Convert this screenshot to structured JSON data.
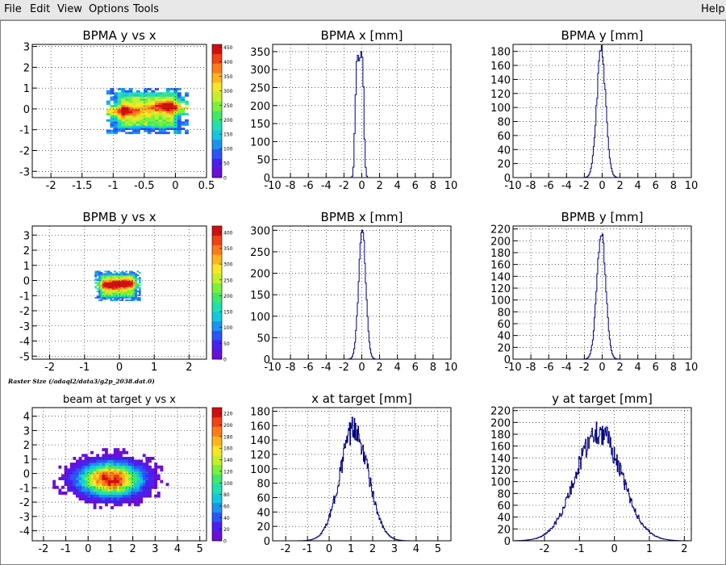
{
  "menu": {
    "file": "File",
    "edit": "Edit",
    "view": "View",
    "options": "Options",
    "tools": "Tools",
    "help": "Help"
  },
  "caption": "Raster Size (/adaql2/data3/g2p_2038.dat.0)",
  "colors": {
    "hist_line": "#000080",
    "grid": "#000000"
  },
  "palette": [
    "#6a0fd8",
    "#4b1ff0",
    "#2b55f7",
    "#1a94f0",
    "#12c8e0",
    "#1fe0b0",
    "#3fe86a",
    "#7cf03a",
    "#c4f02a",
    "#f8e624",
    "#ffb41e",
    "#ff7a18",
    "#f04214",
    "#d01010"
  ],
  "panels": [
    {
      "kind": "2d",
      "title": "BPMA y vs x",
      "xlim": [
        -2.3,
        0.5
      ],
      "ylim": [
        -3.3,
        3.1
      ],
      "xticks": [
        -2,
        -1.5,
        -1,
        -0.5,
        0,
        0.5
      ],
      "yticks": [
        -3,
        -2,
        -1,
        0,
        1,
        2,
        3
      ],
      "zmax": 460,
      "zticks": [
        0,
        50,
        100,
        150,
        200,
        250,
        300,
        350,
        400,
        450
      ],
      "blob": {
        "shape": "rect",
        "cx": -0.45,
        "cy": -0.1,
        "rx": 0.6,
        "ry": 1.0,
        "hot": [
          [
            -0.9,
            -0.1
          ],
          [
            -0.05,
            0.1
          ]
        ],
        "nx": 22,
        "ny": 22
      }
    },
    {
      "kind": "hist",
      "title": "BPMA x [mm]",
      "xlim": [
        -10,
        10
      ],
      "ylim": [
        0,
        370
      ],
      "xticks": [
        -10,
        -8,
        -6,
        -4,
        -2,
        0,
        2,
        4,
        6,
        8,
        10
      ],
      "yticks": [
        0,
        50,
        100,
        150,
        200,
        250,
        300,
        350
      ],
      "shape": {
        "type": "double",
        "m1": -0.55,
        "m2": 0.05,
        "s": 0.25,
        "amp": 340,
        "noise": 0.08,
        "bins": 160
      }
    },
    {
      "kind": "hist",
      "title": "BPMA y [mm]",
      "xlim": [
        -10,
        10
      ],
      "ylim": [
        0,
        190
      ],
      "xticks": [
        -10,
        -8,
        -6,
        -4,
        -2,
        0,
        2,
        4,
        6,
        8,
        10
      ],
      "yticks": [
        0,
        20,
        40,
        60,
        80,
        100,
        120,
        140,
        160,
        180
      ],
      "shape": {
        "type": "gauss",
        "m": -0.1,
        "s": 0.5,
        "amp": 180,
        "noise": 0.06,
        "bins": 200
      }
    },
    {
      "kind": "2d",
      "title": "BPMB y vs x",
      "xlim": [
        -2.5,
        2.5
      ],
      "ylim": [
        -5.2,
        3.6
      ],
      "xticks": [
        -2,
        -1,
        0,
        1,
        2
      ],
      "yticks": [
        -5,
        -4,
        -3,
        -2,
        -1,
        0,
        1,
        2,
        3
      ],
      "zmax": 420,
      "zticks": [
        0,
        50,
        100,
        150,
        200,
        250,
        300,
        350,
        400
      ],
      "blob": {
        "shape": "rect",
        "cx": -0.05,
        "cy": -0.35,
        "rx": 0.6,
        "ry": 0.9,
        "hot": [
          [
            -0.3,
            -0.3
          ],
          [
            0.2,
            -0.2
          ]
        ],
        "nx": 24,
        "ny": 24
      }
    },
    {
      "kind": "hist",
      "title": "BPMB x [mm]",
      "xlim": [
        -10,
        10
      ],
      "ylim": [
        0,
        310
      ],
      "xticks": [
        -10,
        -8,
        -6,
        -4,
        -2,
        0,
        2,
        4,
        6,
        8,
        10
      ],
      "yticks": [
        0,
        50,
        100,
        150,
        200,
        250,
        300
      ],
      "shape": {
        "type": "gauss",
        "m": 0.05,
        "s": 0.4,
        "amp": 300,
        "noise": 0.05,
        "bins": 200
      }
    },
    {
      "kind": "hist",
      "title": "BPMB y [mm]",
      "xlim": [
        -10,
        10
      ],
      "ylim": [
        0,
        225
      ],
      "xticks": [
        -10,
        -8,
        -6,
        -4,
        -2,
        0,
        2,
        4,
        6,
        8,
        10
      ],
      "yticks": [
        0,
        20,
        40,
        60,
        80,
        100,
        120,
        140,
        160,
        180,
        200,
        220
      ],
      "shape": {
        "type": "gauss",
        "m": -0.1,
        "s": 0.5,
        "amp": 210,
        "noise": 0.06,
        "bins": 200
      }
    },
    {
      "kind": "2d",
      "title": "beam at target y vs x",
      "xlim": [
        -2.5,
        5.3
      ],
      "ylim": [
        -4.7,
        4.6
      ],
      "xticks": [
        -2,
        -1,
        0,
        1,
        2,
        3,
        4,
        5
      ],
      "yticks": [
        -4,
        -3,
        -2,
        -1,
        0,
        1,
        2,
        3,
        4
      ],
      "zmax": 230,
      "zticks": [
        0,
        20,
        40,
        60,
        80,
        100,
        120,
        140,
        160,
        180,
        200,
        220
      ],
      "blob": {
        "shape": "gauss",
        "cx": 1.0,
        "cy": -0.4,
        "rx": 1.1,
        "ry": 0.9,
        "hot": [],
        "nx": 60,
        "ny": 46
      }
    },
    {
      "kind": "hist",
      "title": "x at target [mm]",
      "xlim": [
        -2.6,
        5.6
      ],
      "ylim": [
        0,
        185
      ],
      "xticks": [
        -2,
        -1,
        0,
        1,
        2,
        3,
        4,
        5
      ],
      "yticks": [
        0,
        20,
        40,
        60,
        80,
        100,
        120,
        140,
        160,
        180
      ],
      "shape": {
        "type": "gauss",
        "m": 1.15,
        "s": 0.65,
        "amp": 155,
        "noise": 0.12,
        "bins": 330
      }
    },
    {
      "kind": "hist",
      "title": "y at target [mm]",
      "xlim": [
        -2.9,
        2.2
      ],
      "ylim": [
        0,
        225
      ],
      "xticks": [
        -2,
        -1,
        0,
        1,
        2
      ],
      "yticks": [
        0,
        20,
        40,
        60,
        80,
        100,
        120,
        140,
        160,
        180,
        200,
        220
      ],
      "shape": {
        "type": "gauss",
        "m": -0.45,
        "s": 0.65,
        "amp": 185,
        "noise": 0.12,
        "bins": 330
      }
    }
  ]
}
